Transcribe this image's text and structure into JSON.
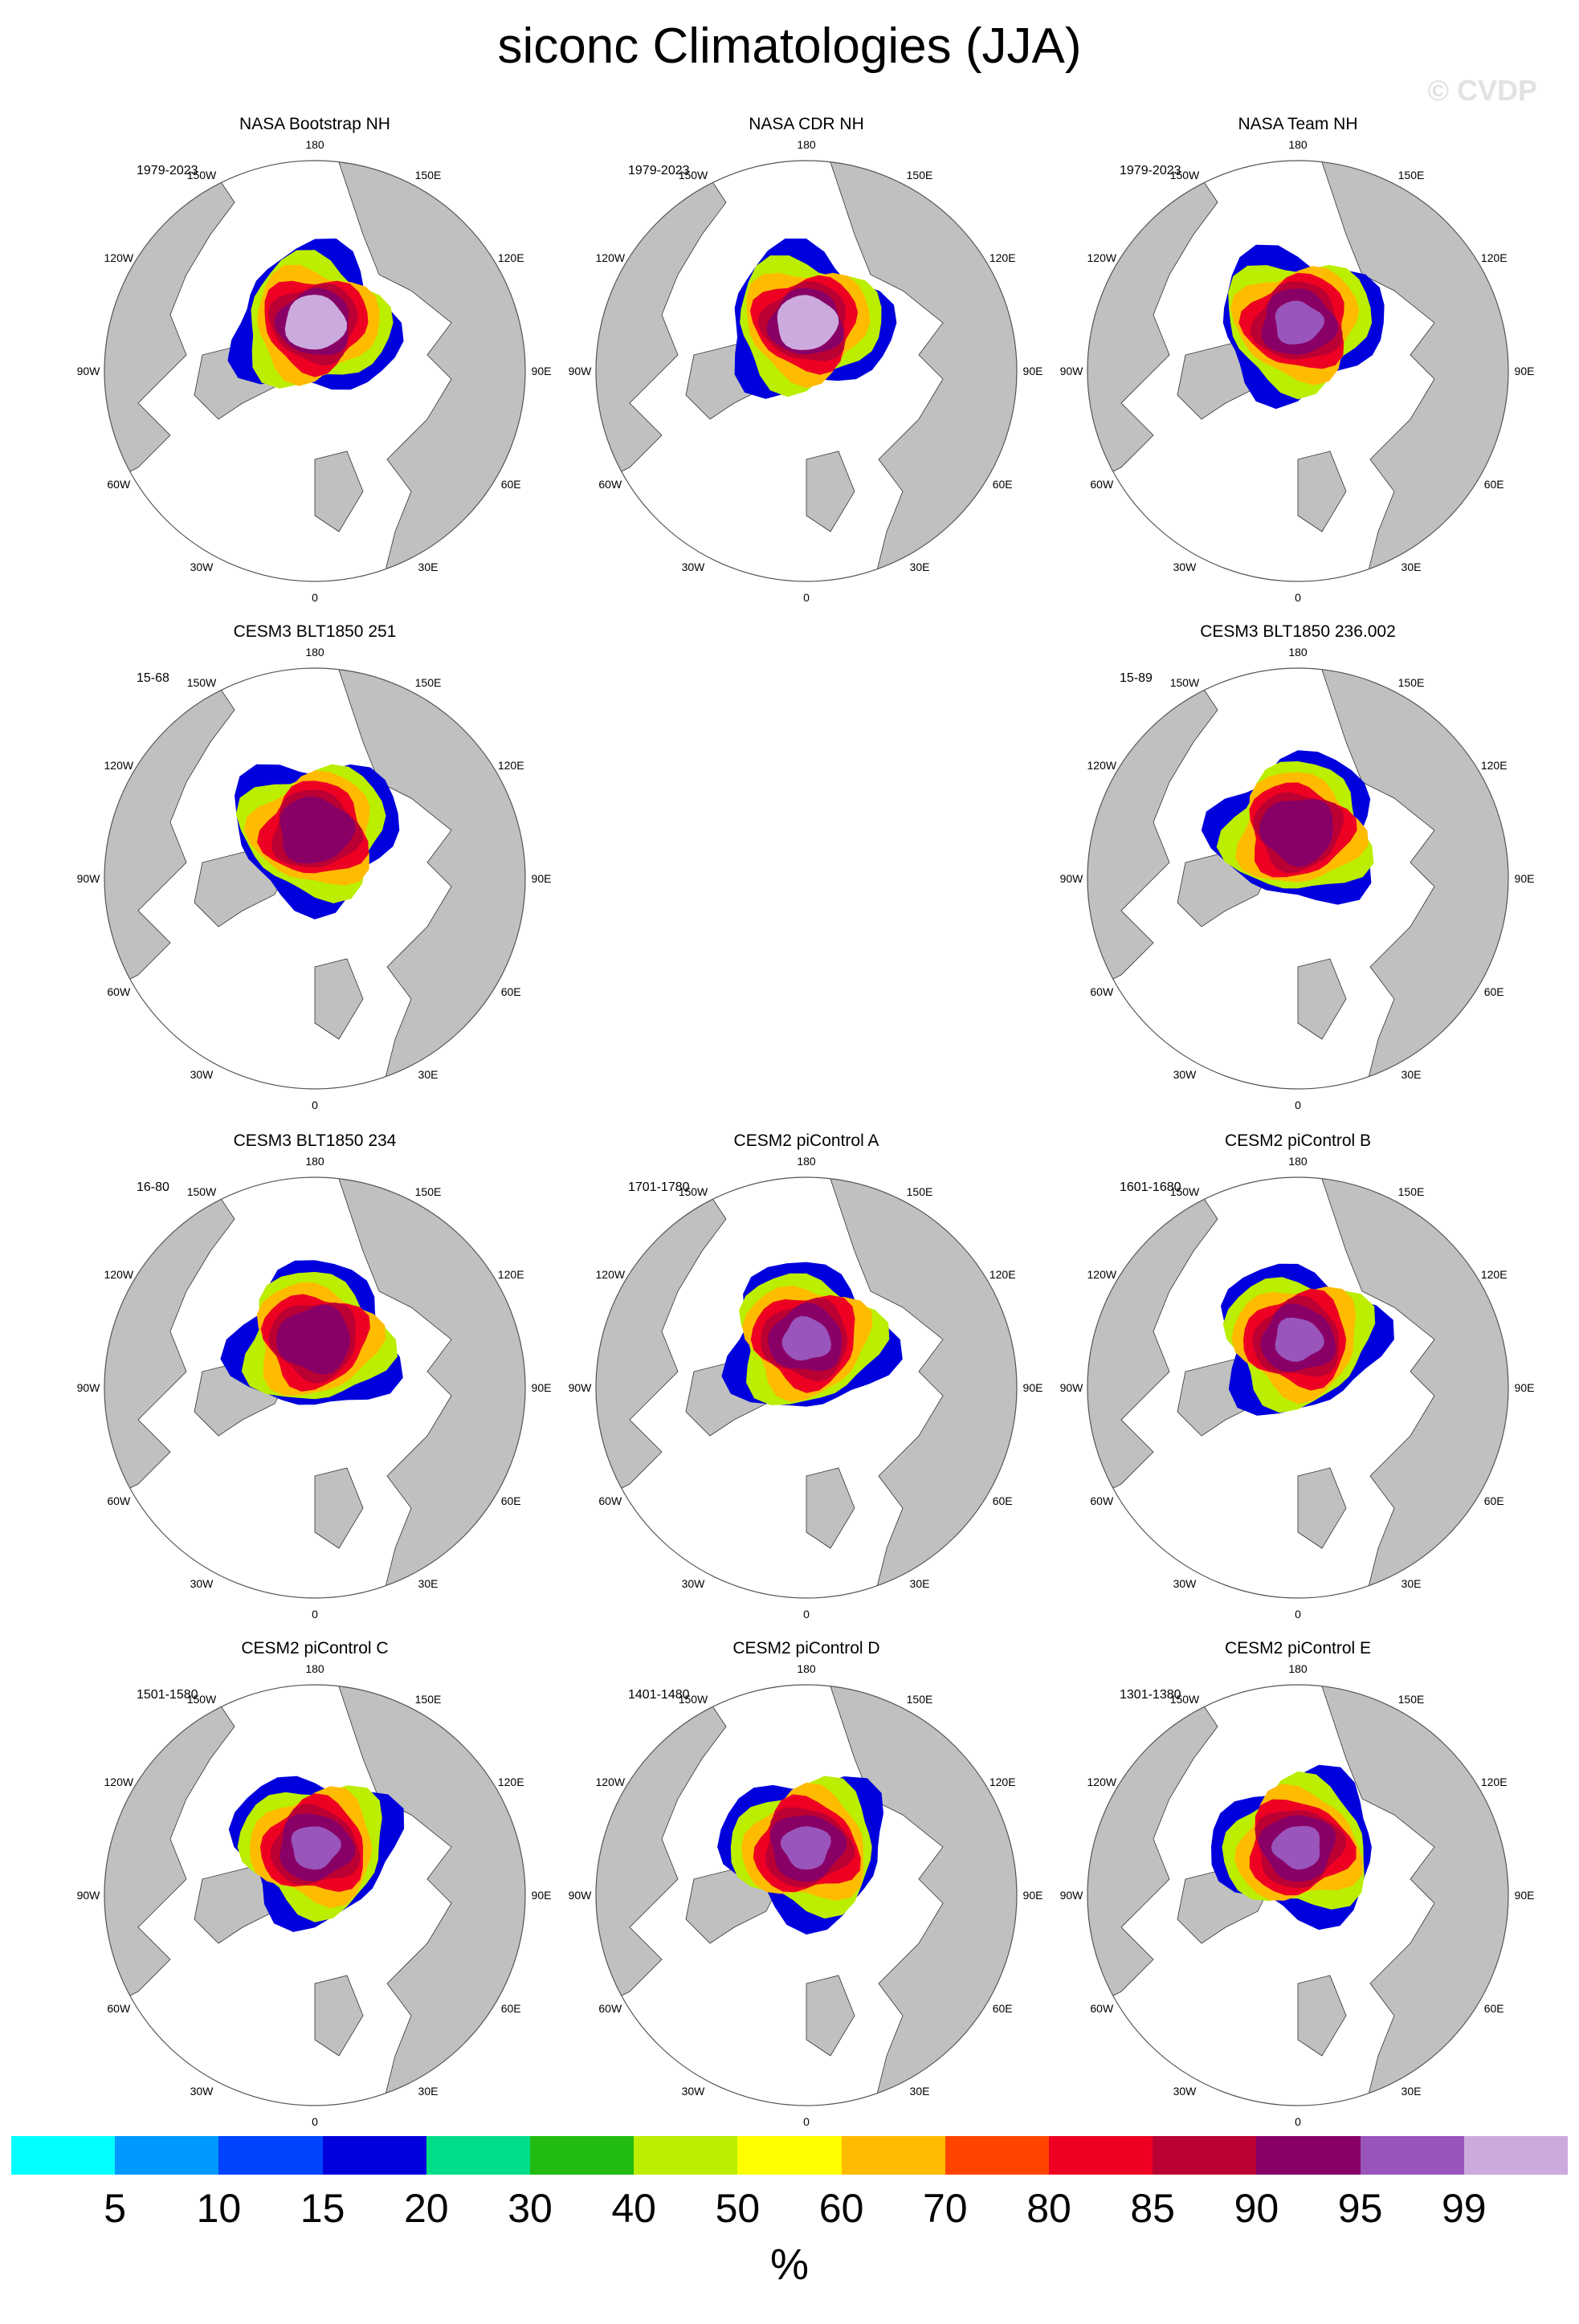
{
  "title": "siconc Climatologies (JJA)",
  "watermark": "© CVDP",
  "chart_data": {
    "type": "polar-map-panels",
    "variable": "siconc",
    "season": "JJA",
    "projection": "north-polar-stereographic",
    "lon_labels": [
      "180",
      "150E",
      "120E",
      "90E",
      "60E",
      "30E",
      "0",
      "30W",
      "60W",
      "90W",
      "120W",
      "150W"
    ],
    "panels": [
      {
        "title": "NASA Bootstrap NH",
        "period": "1979-2023",
        "core_level": 99
      },
      {
        "title": "NASA CDR NH",
        "period": "1979-2023",
        "core_level": 99
      },
      {
        "title": "NASA Team NH",
        "period": "1979-2023",
        "core_level": 95
      },
      {
        "title": "CESM3 BLT1850 251",
        "period": "15-68",
        "core_level": 90
      },
      null,
      {
        "title": "CESM3 BLT1850 236.002",
        "period": "15-89",
        "core_level": 90
      },
      {
        "title": "CESM3 BLT1850 234",
        "period": "16-80",
        "core_level": 90
      },
      {
        "title": "CESM2 piControl A",
        "period": "1701-1780",
        "core_level": 95
      },
      {
        "title": "CESM2 piControl B",
        "period": "1601-1680",
        "core_level": 95
      },
      {
        "title": "CESM2 piControl C",
        "period": "1501-1580",
        "core_level": 95
      },
      {
        "title": "CESM2 piControl D",
        "period": "1401-1480",
        "core_level": 95
      },
      {
        "title": "CESM2 piControl E",
        "period": "1301-1380",
        "core_level": 95
      }
    ],
    "colorbar": {
      "levels": [
        5,
        10,
        15,
        20,
        30,
        40,
        50,
        60,
        70,
        80,
        85,
        90,
        95,
        99
      ],
      "colors": [
        "#00ffff",
        "#0099ff",
        "#0044ff",
        "#0000dd",
        "#00dd88",
        "#22bb11",
        "#bbee00",
        "#ffff00",
        "#ffbb00",
        "#ff4400",
        "#ee0022",
        "#bb0033",
        "#880066",
        "#9955bb",
        "#ccaadd"
      ],
      "units": "%"
    }
  }
}
